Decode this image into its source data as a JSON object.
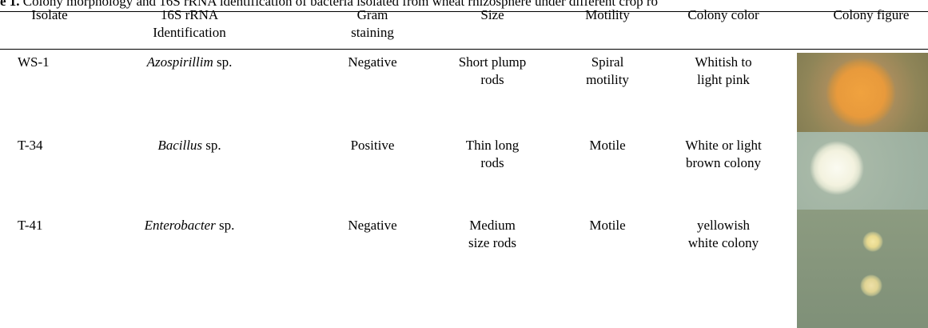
{
  "caption": {
    "label": "e 1.",
    "text": "Colony morphology and 16S rRNA identification of bacteria isolated from wheat rhizosphere under different crop ro"
  },
  "table": {
    "headers": [
      [
        "Isolate"
      ],
      [
        "16S rRNA",
        "Identification"
      ],
      [
        "Gram",
        "staining"
      ],
      [
        "Size"
      ],
      [
        "Motility"
      ],
      [
        "Colony color"
      ],
      [
        "Colony figure"
      ]
    ],
    "rows": [
      {
        "isolate": "WS-1",
        "identification": {
          "genus": "Azospirillim",
          "suffix": "sp."
        },
        "gram": [
          "Negative"
        ],
        "size": [
          "Short plump",
          "rods"
        ],
        "motility": [
          "Spiral",
          "motility"
        ],
        "color": [
          "Whitish to",
          "light pink"
        ]
      },
      {
        "isolate": "T-34",
        "identification": {
          "genus": "Bacillus",
          "suffix": "sp."
        },
        "gram": [
          "Positive"
        ],
        "size": [
          "Thin long",
          "rods"
        ],
        "motility": [
          "Motile"
        ],
        "color": [
          "White or light",
          "brown colony"
        ]
      },
      {
        "isolate": "T-41",
        "identification": {
          "genus": "Enterobacter",
          "suffix": "sp."
        },
        "gram": [
          "Negative"
        ],
        "size": [
          "Medium",
          "size rods"
        ],
        "motility": [
          "Motile"
        ],
        "color": [
          "yellowish",
          "white colony"
        ]
      }
    ]
  }
}
